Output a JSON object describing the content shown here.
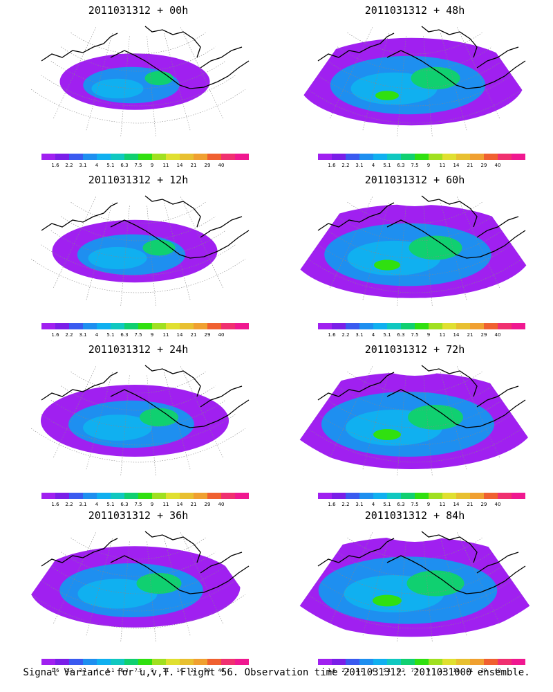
{
  "panels": [
    {
      "title": "2011031312 + 00h"
    },
    {
      "title": "2011031312 + 48h"
    },
    {
      "title": "2011031312 + 12h"
    },
    {
      "title": "2011031312 + 60h"
    },
    {
      "title": "2011031312 + 24h"
    },
    {
      "title": "2011031312 + 72h"
    },
    {
      "title": "2011031312 + 36h"
    },
    {
      "title": "2011031312 + 84h"
    }
  ],
  "colorbar": {
    "labels": [
      "1.6",
      "2.2",
      "3.1",
      "4",
      "5.1",
      "6.3",
      "7.5",
      "9",
      "11",
      "14",
      "21",
      "29",
      "40"
    ],
    "colors": [
      "#a020f0",
      "#7a1ee8",
      "#3a5af0",
      "#1e8ff0",
      "#10b0f0",
      "#10c8c0",
      "#10d070",
      "#30e010",
      "#a0e020",
      "#e0e030",
      "#e8c030",
      "#f0a030",
      "#f06030",
      "#f03070",
      "#f01890"
    ]
  },
  "footer": "Signal Variance for u,v,T. Flight 56. Observation time 2011031312. 2011031000 ensemble."
}
